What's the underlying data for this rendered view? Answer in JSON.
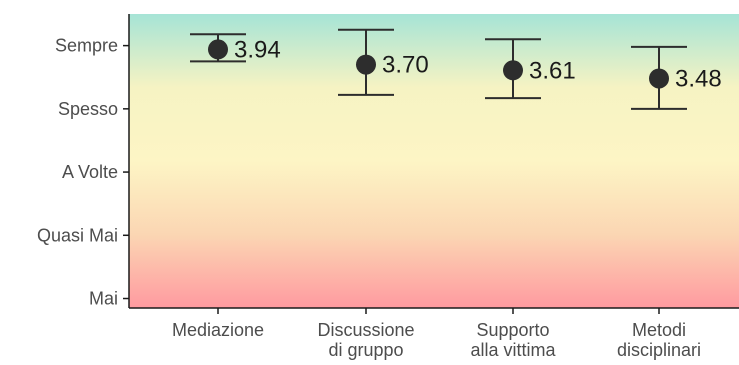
{
  "chart_data": {
    "type": "scatter",
    "title": "",
    "xlabel": "",
    "ylabel": "",
    "y_tick_labels": [
      "Mai",
      "Quasi Mai",
      "A Volte",
      "Spesso",
      "Sempre"
    ],
    "y_tick_values": [
      0,
      1,
      2,
      3,
      4
    ],
    "ylim": [
      -0.15,
      4.5
    ],
    "categories": [
      [
        "Mediazione"
      ],
      [
        "Discussione",
        "di gruppo"
      ],
      [
        "Supporto",
        "alla vittima"
      ],
      [
        "Metodi",
        "disciplinari"
      ]
    ],
    "values": [
      3.94,
      3.7,
      3.61,
      3.48
    ],
    "data_labels": [
      "3.94",
      "3.70",
      "3.61",
      "3.48"
    ],
    "error_low": [
      3.75,
      3.22,
      3.17,
      3.0
    ],
    "error_high": [
      4.18,
      4.25,
      4.1,
      3.98
    ],
    "background_gradient": [
      "#a6e4d6",
      "#f6f3c3",
      "#fdf5c5",
      "#fbd6b3",
      "#ff9aa0"
    ],
    "point_color": "#2d2d2d",
    "grid": false,
    "legend": "none"
  }
}
